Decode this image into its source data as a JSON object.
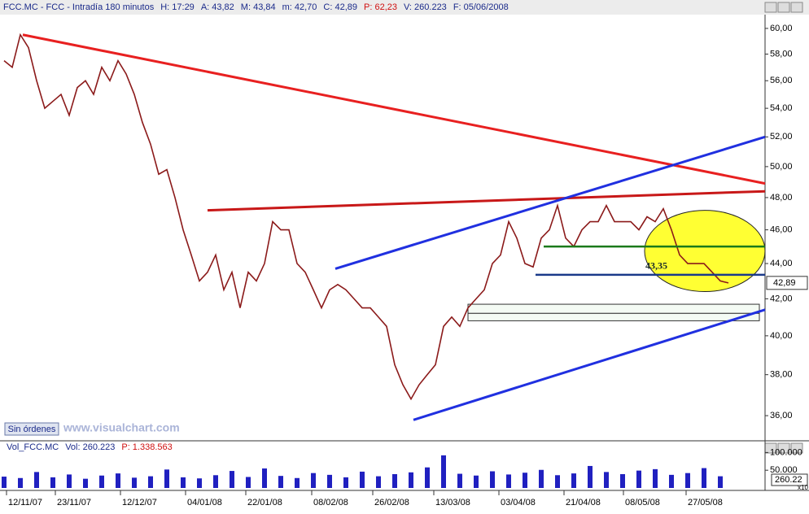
{
  "header": {
    "items": [
      {
        "text": "FCC.MC - FCC - Intradía 180 minutos",
        "color": "#1a2a8a"
      },
      {
        "text": "H: 17:29",
        "color": "#1a2a8a"
      },
      {
        "text": "A: 43,82",
        "color": "#1a2a8a"
      },
      {
        "text": "M: 43,84",
        "color": "#1a2a8a"
      },
      {
        "text": "m: 42,70",
        "color": "#1a2a8a"
      },
      {
        "text": "C: 42,89",
        "color": "#1a2a8a"
      },
      {
        "text": "P: 62,23",
        "color": "#d01010"
      },
      {
        "text": "V: 260.223",
        "color": "#1a2a8a"
      },
      {
        "text": "F: 05/06/2008",
        "color": "#1a2a8a"
      }
    ]
  },
  "footer": {
    "button": "Sin órdenes",
    "watermark": "www.visualchart.com"
  },
  "chart_data": [
    {
      "type": "line",
      "color": "#8b1a1a",
      "log_scale": true,
      "x": [
        1,
        3,
        5,
        7,
        9,
        11,
        13,
        15,
        17,
        19,
        21,
        23,
        25,
        27,
        29,
        31,
        33,
        35,
        37,
        39,
        41,
        43,
        45,
        47,
        49,
        51,
        53,
        55,
        57,
        59,
        61,
        63,
        65,
        67,
        69,
        71,
        73,
        75,
        77,
        79,
        81,
        83,
        85,
        87,
        89,
        91,
        93,
        95,
        97,
        99,
        101,
        103,
        105,
        107,
        109,
        111,
        113,
        115,
        117,
        119,
        121,
        123,
        125,
        127,
        129,
        131,
        133,
        135,
        137,
        139,
        141,
        143,
        145,
        147,
        149,
        151,
        153,
        155,
        157,
        159,
        161,
        163,
        165,
        167,
        169,
        171,
        173,
        175,
        177,
        179
      ],
      "values": [
        57.5,
        57,
        59.5,
        58.5,
        56,
        54,
        54.5,
        55,
        53.5,
        55.5,
        56,
        55,
        57,
        56,
        57.5,
        56.5,
        55,
        53,
        51.5,
        49.5,
        49.8,
        48,
        46,
        44.5,
        43,
        43.5,
        44.5,
        42.5,
        43.5,
        41.5,
        43.5,
        43,
        44,
        46.5,
        46,
        46,
        44,
        43.5,
        42.5,
        41.5,
        42.5,
        42.8,
        42.5,
        42,
        41.5,
        41.5,
        41,
        40.5,
        38.5,
        37.5,
        36.8,
        37.5,
        38,
        38.5,
        40.5,
        41,
        40.5,
        41.5,
        42,
        42.5,
        44,
        44.5,
        46.5,
        45.5,
        44,
        43.8,
        45.5,
        46,
        47.5,
        45.5,
        45,
        46,
        46.5,
        46.5,
        47.5,
        46.5,
        46.5,
        46.5,
        46,
        46.8,
        46.5,
        47.3,
        46,
        44.5,
        44,
        44,
        44,
        43.5,
        43,
        42.89
      ],
      "last_label": "42,89",
      "xlim": [
        0,
        188
      ],
      "ylim": [
        34.9,
        61.1
      ],
      "yticks": [
        {
          "value": 60,
          "label": "60,00"
        },
        {
          "value": 58,
          "label": "58,00"
        },
        {
          "value": 56,
          "label": "56,00"
        },
        {
          "value": 54,
          "label": "54,00"
        },
        {
          "value": 52,
          "label": "52,00"
        },
        {
          "value": 50,
          "label": "50,00"
        },
        {
          "value": 48,
          "label": "48,00"
        },
        {
          "value": 46,
          "label": "46,00"
        },
        {
          "value": 44,
          "label": "44,00"
        },
        {
          "value": 42,
          "label": "42,00"
        },
        {
          "value": 40,
          "label": "40,00"
        },
        {
          "value": 38,
          "label": "38,00"
        },
        {
          "value": 36,
          "label": "36,00"
        }
      ],
      "xticks": [
        {
          "value": 1.6,
          "label": "12/11/07"
        },
        {
          "value": 13.6,
          "label": "23/11/07"
        },
        {
          "value": 29.6,
          "label": "12/12/07"
        },
        {
          "value": 45.6,
          "label": "04/01/08"
        },
        {
          "value": 60.4,
          "label": "22/01/08"
        },
        {
          "value": 76.6,
          "label": "08/02/08"
        },
        {
          "value": 91.6,
          "label": "26/02/08"
        },
        {
          "value": 106.6,
          "label": "13/03/08"
        },
        {
          "value": 122.6,
          "label": "03/04/08"
        },
        {
          "value": 138.6,
          "label": "21/04/08"
        },
        {
          "value": 153.2,
          "label": "08/05/08"
        },
        {
          "value": 168.6,
          "label": "27/05/08"
        }
      ],
      "trendlines": [
        {
          "color": "#e82020",
          "points": [
            [
              5.6,
              59.5
            ],
            [
              188,
              48.9
            ]
          ]
        },
        {
          "color": "#c81818",
          "points": [
            [
              51,
              47.2
            ],
            [
              188,
              48.4
            ]
          ]
        },
        {
          "color": "#2030e0",
          "points": [
            [
              82.4,
              43.7
            ],
            [
              188,
              52
            ]
          ]
        },
        {
          "color": "#2030e0",
          "points": [
            [
              101.6,
              35.8
            ],
            [
              188,
              41.4
            ]
          ]
        }
      ],
      "levels": [
        {
          "color": "#1a7a1a",
          "value": 45,
          "from": 133.6
        },
        {
          "color": "#1a3a8a",
          "value": 43.35,
          "from": 131.6,
          "label": "43,35"
        }
      ],
      "zones": [
        {
          "x": [
            115,
            186.6
          ],
          "y": [
            41.7,
            41.2
          ]
        },
        {
          "x": [
            115,
            186.6
          ],
          "y": [
            41.2,
            40.8
          ]
        }
      ],
      "highlight": {
        "color": "#ffff33",
        "x": [
          158.4,
          188
        ],
        "y": [
          47.2,
          42.4
        ]
      }
    },
    {
      "type": "bar",
      "color": "#2020c0",
      "title_parts": [
        {
          "text": "Vol_FCC.MC",
          "color": "#1a2a8a"
        },
        {
          "text": "Vol: 260.223",
          "color": "#1a2a8a"
        },
        {
          "text": "P: 1.338.563",
          "color": "#d01010"
        }
      ],
      "x": [
        1,
        5,
        9,
        13,
        17,
        21,
        25,
        29,
        33,
        37,
        41,
        45,
        49,
        53,
        57,
        61,
        65,
        69,
        73,
        77,
        81,
        85,
        89,
        93,
        97,
        101,
        105,
        109,
        113,
        117,
        121,
        125,
        129,
        133,
        137,
        141,
        145,
        149,
        153,
        157,
        161,
        165,
        169,
        173,
        177
      ],
      "values": [
        32000,
        28000,
        45000,
        30000,
        38000,
        26000,
        35000,
        41000,
        29000,
        33000,
        52000,
        30000,
        27000,
        36000,
        48000,
        31000,
        55000,
        34000,
        28000,
        42000,
        37000,
        30000,
        46000,
        33000,
        39000,
        44000,
        58000,
        92000,
        40000,
        35000,
        47000,
        38000,
        43000,
        51000,
        36000,
        41000,
        62000,
        45000,
        39000,
        49000,
        53000,
        37000,
        42000,
        56000,
        33000
      ],
      "last_label": "260.22",
      "scale_note": "x10",
      "xlim": [
        0,
        188
      ],
      "ylim": [
        0,
        110000
      ],
      "yticks": [
        {
          "value": 100000,
          "label": "100.000"
        },
        {
          "value": 50000,
          "label": "50.000"
        }
      ]
    }
  ]
}
